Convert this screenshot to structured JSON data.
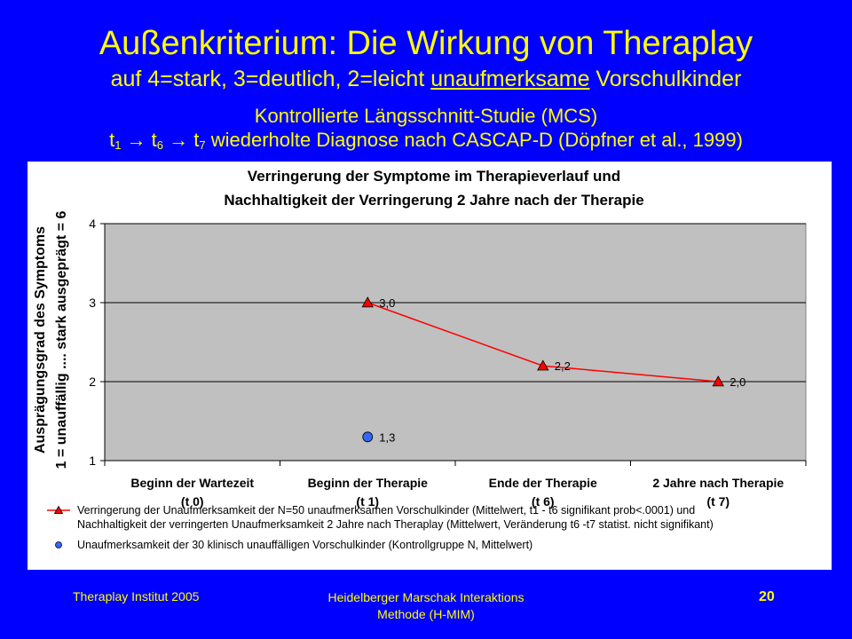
{
  "slide": {
    "title": "Außenkriterium: Die Wirkung von Theraplay",
    "subtitle_pre": "auf 4=stark, 3=deutlich, 2=leicht ",
    "subtitle_underlined": "unaufmerksame",
    "subtitle_post": " Vorschulkinder",
    "study_line_1": "Kontrollierte Längsschnitt-Studie (MCS)",
    "t1": "t",
    "t1_sub": "1",
    "arrow": " → ",
    "t6": "t",
    "t6_sub": "6",
    "t7": "t",
    "t7_sub": "7",
    "study_line_2_rest": " wiederholte Diagnose nach CASCAP-D (Döpfner et al., 1999)"
  },
  "footer": {
    "left": "Theraplay Institut 2005",
    "center_1": "Heidelberger Marschak Interaktions",
    "center_2": "Methode (H-MIM)",
    "page_number": "20"
  },
  "colors": {
    "slide_background": "#0000FF",
    "slide_text": "#FFFF00",
    "plot_area": "#C0C0C0",
    "series_red": "#FF0000",
    "series_blue": "#3366FF"
  },
  "chart_data": {
    "type": "line",
    "title_line_1": "Verringerung der Symptome im Therapieverlauf und",
    "title_line_2": "Nachhaltigkeit der Verringerung 2 Jahre nach der Therapie",
    "ylabel_line_1": "Ausprägungsgrad des Symptoms",
    "ylabel_line_2": "1 = unauffällig .... stark ausgeprägt = 6",
    "categories": [
      {
        "name": "Beginn der Wartezeit",
        "time": "(t 0)"
      },
      {
        "name": "Beginn der Therapie",
        "time": "(t 1)"
      },
      {
        "name": "Ende der Therapie",
        "time": "(t 6)"
      },
      {
        "name": "2 Jahre nach Therapie",
        "time": "(t 7)"
      }
    ],
    "ylim": [
      1,
      4
    ],
    "yticks": [
      "1",
      "2",
      "3",
      "4"
    ],
    "grid": true,
    "legend_position": "bottom",
    "series": [
      {
        "name": "Verringerung der Unaufmerksamkeit der N=50 unaufmerksamen Vorschulkinder (Mittelwert, t1 - t6 signifikant prob<.0001) und",
        "name_line_2": "Nachhaltigkeit der verringerten Unaufmerksamkeit 2 Jahre nach Theraplay (Mittelwert, Veränderung t6 -t7 statist. nicht signifikant)",
        "marker": "triangle",
        "color": "#FF0000",
        "values": [
          null,
          3.0,
          2.2,
          2.0
        ],
        "labels": [
          "",
          "3,0",
          "2,2",
          "2,0"
        ]
      },
      {
        "name": "Unaufmerksamkeit der 30 klinisch unauffälligen Vorschulkinder (Kontrollgruppe N, Mittelwert)",
        "marker": "circle",
        "color": "#3366FF",
        "values": [
          null,
          1.3,
          null,
          null
        ],
        "labels": [
          "",
          "1,3",
          "",
          ""
        ]
      }
    ]
  }
}
